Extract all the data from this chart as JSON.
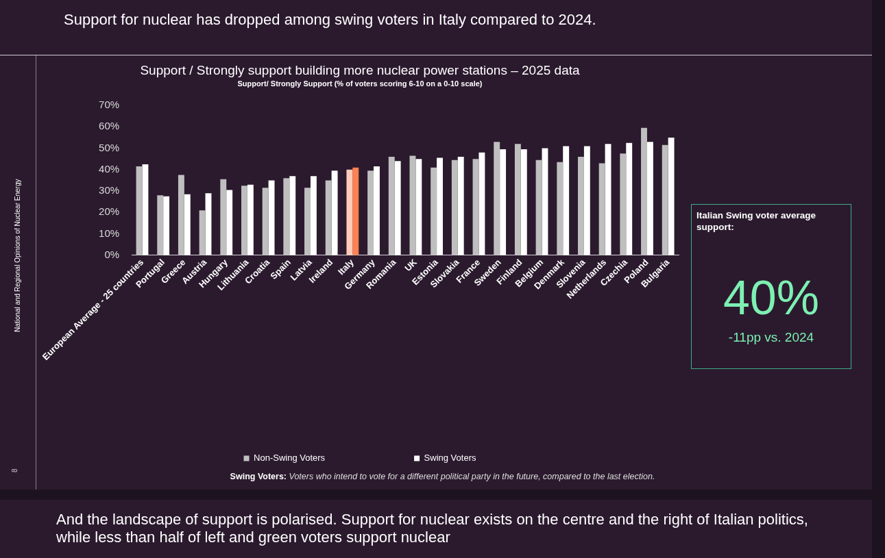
{
  "chart_data": {
    "type": "bar",
    "title": "Support / Strongly support building more nuclear power stations – 2025 data",
    "subtitle": "Support/ Strongly Support (% of voters scoring 6-10 on a 0-10 scale)",
    "categories": [
      "European Average - 25 countries",
      "Portugal",
      "Greece",
      "Austria",
      "Hungary",
      "Lithuania",
      "Croatia",
      "Spain",
      "Latvia",
      "Ireland",
      "Italy",
      "Germany",
      "Romania",
      "UK",
      "Estonia",
      "Slovakia",
      "France",
      "Sweden",
      "Finland",
      "Belgium",
      "Denmark",
      "Slovenia",
      "Netherlands",
      "Czechia",
      "Poland",
      "Bulgaria"
    ],
    "series": [
      {
        "name": "Non-Swing Voters",
        "color": "#bfbfbf",
        "colors": [
          "#bfbfbf",
          "#bfbfbf",
          "#bfbfbf",
          "#bfbfbf",
          "#bfbfbf",
          "#bfbfbf",
          "#bfbfbf",
          "#bfbfbf",
          "#bfbfbf",
          "#bfbfbf",
          "#ffcbb7",
          "#bfbfbf",
          "#bfbfbf",
          "#bfbfbf",
          "#bfbfbf",
          "#bfbfbf",
          "#bfbfbf",
          "#bfbfbf",
          "#bfbfbf",
          "#bfbfbf",
          "#bfbfbf",
          "#bfbfbf",
          "#bfbfbf",
          "#bfbfbf",
          "#bfbfbf",
          "#bfbfbf"
        ],
        "values": [
          41.5,
          28,
          37.5,
          21,
          35.5,
          32.5,
          31.5,
          36,
          31.5,
          35,
          40,
          39.5,
          46,
          46.5,
          41,
          44.5,
          45,
          53,
          52,
          44.5,
          43.5,
          46,
          43,
          47.5,
          59.5,
          51.5
        ]
      },
      {
        "name": "Swing Voters",
        "color": "#ffffff",
        "colors": [
          "#ffffff",
          "#ffffff",
          "#ffffff",
          "#ffffff",
          "#ffffff",
          "#ffffff",
          "#ffffff",
          "#ffffff",
          "#ffffff",
          "#ffffff",
          "#ff8052",
          "#ffffff",
          "#ffffff",
          "#ffffff",
          "#ffffff",
          "#ffffff",
          "#ffffff",
          "#ffffff",
          "#ffffff",
          "#ffffff",
          "#ffffff",
          "#ffffff",
          "#ffffff",
          "#ffffff",
          "#ffffff",
          "#ffffff"
        ],
        "values": [
          42.5,
          27.5,
          28.5,
          29,
          30.5,
          33,
          35,
          37,
          37,
          39.5,
          41,
          41.5,
          44,
          45,
          45.5,
          46,
          48,
          49.5,
          49.5,
          50,
          51,
          51,
          52,
          52.5,
          53,
          55
        ]
      }
    ],
    "ylim": [
      0,
      70
    ],
    "yticks": [
      {
        "value": 0,
        "label": "0%"
      },
      {
        "value": 10,
        "label": "10%"
      },
      {
        "value": 20,
        "label": "20%"
      },
      {
        "value": 30,
        "label": "30%"
      },
      {
        "value": 40,
        "label": "40%"
      },
      {
        "value": 50,
        "label": "50%"
      },
      {
        "value": 60,
        "label": "60%"
      },
      {
        "value": 70,
        "label": "70%"
      }
    ],
    "grid": false,
    "legend": "bottom",
    "annotations": [
      "Support for nuclear has dropped among swing voters in Italy compared to 2024.",
      "Italian Swing voter average support:",
      "40%",
      "-11pp vs. 2024",
      "Swing Voters:",
      "Voters who intend to vote for a different political party in the future, compared to the last election.",
      "And the landscape of support is polarised. Support for nuclear exists on the centre and the right of Italian politics, while less than half of left and green voters support nuclear",
      "National and Regional Opinions of Nuclear Energy",
      "8"
    ]
  }
}
